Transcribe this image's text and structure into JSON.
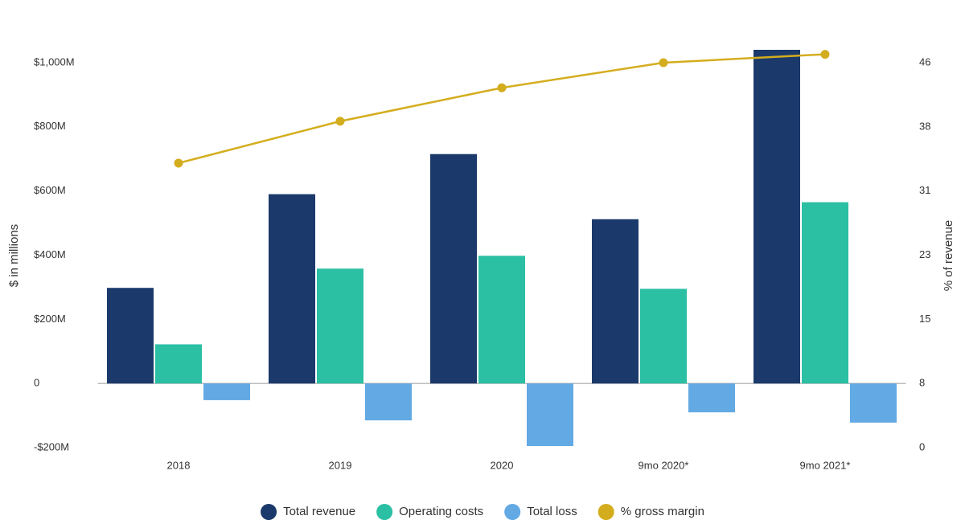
{
  "chart_data": {
    "type": "bar",
    "categories": [
      "2018",
      "2019",
      "2020",
      "9mo 2020*",
      "9mo 2021*"
    ],
    "series": [
      {
        "name": "Total revenue",
        "color": "#1b3a6b",
        "values": [
          298,
          590,
          715,
          512,
          1040
        ]
      },
      {
        "name": "Operating costs",
        "color": "#2bbfa4",
        "values": [
          122,
          358,
          398,
          295,
          565
        ]
      },
      {
        "name": "Total loss",
        "color": "#63a9e4",
        "values": [
          -52,
          -115,
          -195,
          -90,
          -122
        ]
      },
      {
        "name": "% gross margin",
        "color": "#d4ad1e",
        "type": "line",
        "axis": "y2",
        "values": [
          34,
          39,
          43,
          46,
          47
        ]
      }
    ],
    "ylabel": "$ in millions",
    "y2label": "% of revenue",
    "ylim": [
      -200,
      1050
    ],
    "yticks": [
      {
        "value": 1000,
        "label": "$1,000M"
      },
      {
        "value": 800,
        "label": "$800M"
      },
      {
        "value": 600,
        "label": "$600M"
      },
      {
        "value": 400,
        "label": "$400M"
      },
      {
        "value": 200,
        "label": "$200M"
      },
      0,
      {
        "value": -200,
        "label": "-$200M"
      }
    ],
    "y2lim": [
      0,
      47.92
    ],
    "y2ticks": [
      46,
      {
        "value": 38.33,
        "label": "38"
      },
      {
        "value": 30.67,
        "label": "31"
      },
      23,
      {
        "value": 15.33,
        "label": "15"
      },
      {
        "value": 7.67,
        "label": "8"
      },
      0
    ],
    "grid": false,
    "legend": "bottom"
  }
}
